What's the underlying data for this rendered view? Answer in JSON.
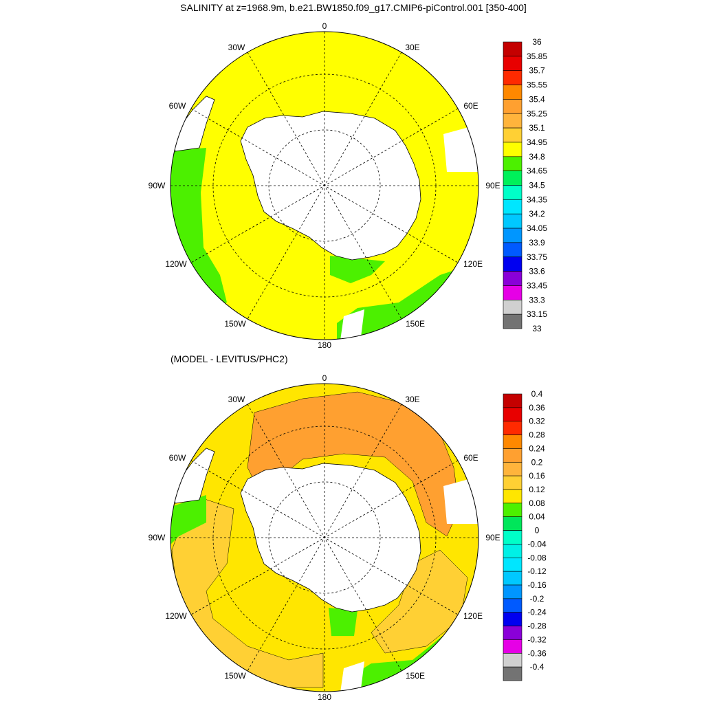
{
  "title": "SALINITY at z=1968.9m, b.e21.BW1850.f09_g17.CMIP6-piControl.001 [350-400]",
  "panels": [
    {
      "id": "salinity",
      "subtitle": "",
      "colorbar_labels": [
        "36",
        "35.85",
        "35.7",
        "35.55",
        "35.4",
        "35.25",
        "35.1",
        "34.95",
        "34.8",
        "34.65",
        "34.5",
        "34.35",
        "34.2",
        "34.05",
        "33.9",
        "33.75",
        "33.6",
        "33.45",
        "33.3",
        "33.15",
        "33"
      ],
      "colorbar_colors": [
        "#c40000",
        "#e80000",
        "#ff2a00",
        "#ff8800",
        "#ffa030",
        "#ffb43c",
        "#ffd034",
        "#ffff00",
        "#4cf000",
        "#00f05a",
        "#00ffc8",
        "#00e6ff",
        "#00c8ff",
        "#0096ff",
        "#005aff",
        "#0000f0",
        "#8a00d8",
        "#e600e6",
        "#d0d0d0",
        "#737373"
      ],
      "lon_labels": {
        "n": "0",
        "e30": "30E",
        "e60": "60E",
        "e90": "90E",
        "e120": "120E",
        "e150": "150E",
        "s": "180",
        "w150": "150W",
        "w120": "120W",
        "w90": "90W",
        "w60": "60W",
        "w30": "30W"
      }
    },
    {
      "id": "difference",
      "subtitle": "(MODEL - LEVITUS/PHC2)",
      "colorbar_labels": [
        "0.4",
        "0.36",
        "0.32",
        "0.28",
        "0.24",
        "0.2",
        "0.16",
        "0.12",
        "0.08",
        "0.04",
        "0",
        "-0.04",
        "-0.08",
        "-0.12",
        "-0.16",
        "-0.2",
        "-0.24",
        "-0.28",
        "-0.32",
        "-0.36",
        "-0.4"
      ],
      "colorbar_colors": [
        "#c40000",
        "#e80000",
        "#ff2a00",
        "#ff8800",
        "#ffa030",
        "#ffb43c",
        "#ffd034",
        "#ffe600",
        "#4cf000",
        "#00e65a",
        "#00ffc8",
        "#00f0e6",
        "#00e6ff",
        "#00c8ff",
        "#0096ff",
        "#005aff",
        "#0000f0",
        "#8a00d8",
        "#e600e6",
        "#d0d0d0",
        "#737373"
      ],
      "lon_labels": {
        "n": "0",
        "e30": "30E",
        "e60": "60E",
        "e90": "90E",
        "e120": "120E",
        "e150": "150E",
        "s": "180",
        "w150": "150W",
        "w120": "120W",
        "w90": "90W",
        "w60": "60W",
        "w30": "30W"
      }
    }
  ],
  "colors": {
    "land": "#ffffff",
    "ocean_top": "#ffff00",
    "ocean_bottom": "#ffe600",
    "shelf_green": "#4cf000",
    "diff_orange": "#ffa030",
    "diff_light": "#ffd034",
    "grid": "#000000"
  }
}
